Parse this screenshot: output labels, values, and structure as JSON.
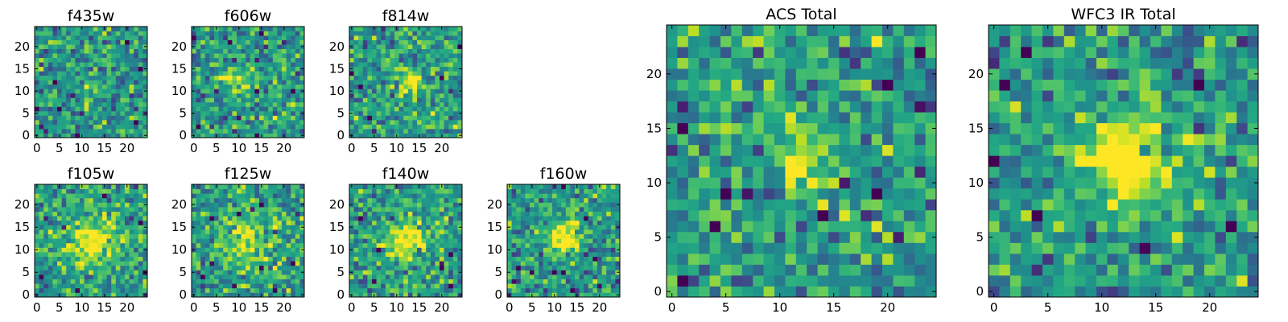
{
  "chart_data": [
    {
      "type": "heatmap",
      "title": "f435w",
      "xticks": [
        "0",
        "5",
        "10",
        "15",
        "20"
      ],
      "yticks": [
        "0",
        "5",
        "10",
        "15",
        "20"
      ],
      "grid_size": 25,
      "colormap": "viridis",
      "seed": 3,
      "peak": 0.05,
      "sigma": 3.0,
      "center": [
        12,
        12
      ]
    },
    {
      "type": "heatmap",
      "title": "f606w",
      "xticks": [
        "0",
        "5",
        "10",
        "15",
        "20"
      ],
      "yticks": [
        "0",
        "5",
        "10",
        "15",
        "20"
      ],
      "grid_size": 25,
      "colormap": "viridis",
      "seed": 7,
      "peak": 0.35,
      "sigma": 2.5,
      "center": [
        10,
        12
      ]
    },
    {
      "type": "heatmap",
      "title": "f814w",
      "xticks": [
        "0",
        "5",
        "10",
        "15",
        "20"
      ],
      "yticks": [
        "0",
        "5",
        "10",
        "15",
        "20"
      ],
      "grid_size": 25,
      "colormap": "viridis",
      "seed": 11,
      "peak": 0.4,
      "sigma": 2.2,
      "center": [
        13,
        12
      ]
    },
    {
      "type": "heatmap",
      "title": "f105w",
      "xticks": [
        "0",
        "5",
        "10",
        "15",
        "20"
      ],
      "yticks": [
        "0",
        "5",
        "10",
        "15",
        "20"
      ],
      "grid_size": 25,
      "colormap": "viridis",
      "seed": 19,
      "peak": 0.45,
      "sigma": 4.0,
      "center": [
        12,
        12
      ]
    },
    {
      "type": "heatmap",
      "title": "f125w",
      "xticks": [
        "0",
        "5",
        "10",
        "15",
        "20"
      ],
      "yticks": [
        "0",
        "5",
        "10",
        "15",
        "20"
      ],
      "grid_size": 25,
      "colormap": "viridis",
      "seed": 23,
      "peak": 0.35,
      "sigma": 4.0,
      "center": [
        12,
        12
      ]
    },
    {
      "type": "heatmap",
      "title": "f140w",
      "xticks": [
        "0",
        "5",
        "10",
        "15",
        "20"
      ],
      "yticks": [
        "0",
        "5",
        "10",
        "15",
        "20"
      ],
      "grid_size": 25,
      "colormap": "viridis",
      "seed": 29,
      "peak": 0.45,
      "sigma": 3.5,
      "center": [
        12,
        12
      ]
    },
    {
      "type": "heatmap",
      "title": "f160w",
      "xticks": [
        "0",
        "5",
        "10",
        "15",
        "20"
      ],
      "yticks": [
        "0",
        "5",
        "10",
        "15",
        "20"
      ],
      "grid_size": 25,
      "colormap": "viridis",
      "seed": 31,
      "peak": 0.55,
      "sigma": 2.5,
      "center": [
        12,
        13
      ]
    },
    {
      "type": "heatmap",
      "title": "ACS Total",
      "xticks": [
        "0",
        "5",
        "10",
        "15",
        "20"
      ],
      "yticks": [
        "0",
        "5",
        "10",
        "15",
        "20"
      ],
      "grid_size": 25,
      "colormap": "viridis",
      "seed": 41,
      "peak": 0.35,
      "sigma": 2.0,
      "center": [
        12,
        12
      ]
    },
    {
      "type": "heatmap",
      "title": "WFC3 IR Total",
      "xticks": [
        "0",
        "5",
        "10",
        "15",
        "20"
      ],
      "yticks": [
        "0",
        "5",
        "10",
        "15",
        "20"
      ],
      "grid_size": 25,
      "colormap": "viridis",
      "seed": 53,
      "peak": 0.6,
      "sigma": 2.8,
      "center": [
        12,
        12
      ]
    }
  ]
}
